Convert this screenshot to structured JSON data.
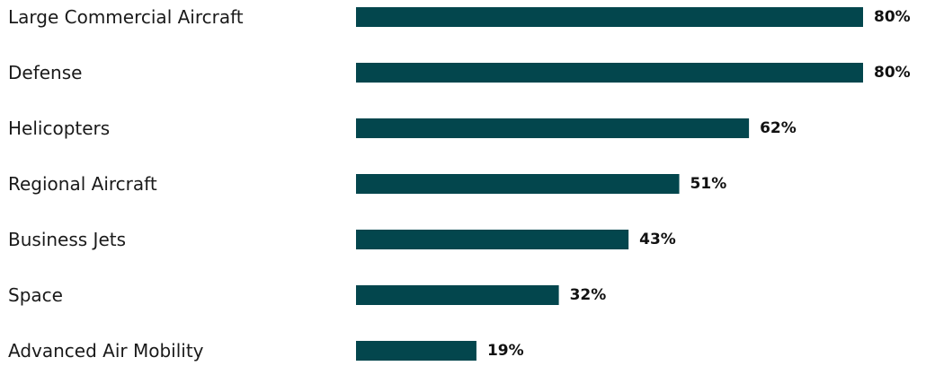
{
  "chart_data": {
    "type": "bar",
    "orientation": "horizontal",
    "categories": [
      "Large Commercial Aircraft",
      "Defense",
      "Helicopters",
      "Regional Aircraft",
      "Business Jets",
      "Space",
      "Advanced Air Mobility"
    ],
    "values": [
      80,
      80,
      62,
      51,
      43,
      32,
      19
    ],
    "value_labels": [
      "80%",
      "80%",
      "62%",
      "51%",
      "43%",
      "32%",
      "19%"
    ],
    "title": "",
    "xlabel": "",
    "ylabel": "",
    "xlim": [
      0,
      80
    ],
    "grid": false,
    "legend": "none",
    "bar_color": "#03464d"
  }
}
